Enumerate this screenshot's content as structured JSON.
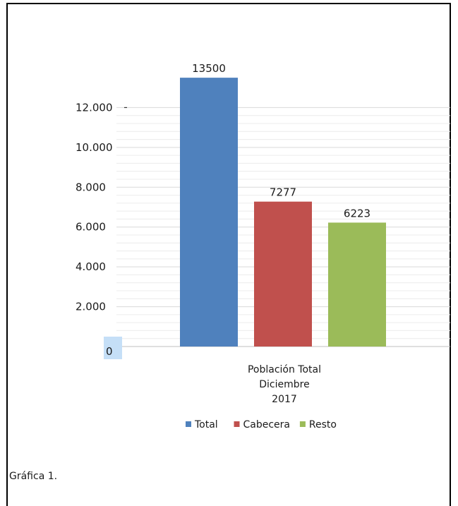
{
  "chart_data": {
    "type": "bar",
    "categories": [
      "Población Total Diciembre 2017"
    ],
    "category_lines": [
      "Población Total",
      "Diciembre",
      "2017"
    ],
    "series": [
      {
        "name": "Total",
        "values": [
          13500
        ],
        "color": "#4f81bd"
      },
      {
        "name": "Cabecera",
        "values": [
          7277
        ],
        "color": "#c0504d"
      },
      {
        "name": "Resto",
        "values": [
          6223
        ],
        "color": "#9bbb59"
      }
    ],
    "data_labels": [
      "13500",
      "7277",
      "6223"
    ],
    "y_ticks": [
      {
        "value": 0,
        "label": "0"
      },
      {
        "value": 2000,
        "label": "2.000"
      },
      {
        "value": 4000,
        "label": "4.000"
      },
      {
        "value": 6000,
        "label": "6.000"
      },
      {
        "value": 8000,
        "label": "8.000"
      },
      {
        "value": 10000,
        "label": "10.000"
      },
      {
        "value": 12000,
        "label": "12.000"
      }
    ],
    "ylim": [
      0,
      14000
    ],
    "grid": true,
    "legend_position": "bottom",
    "title": "",
    "xlabel": "",
    "ylabel": ""
  },
  "caption": "Gráfica 1."
}
